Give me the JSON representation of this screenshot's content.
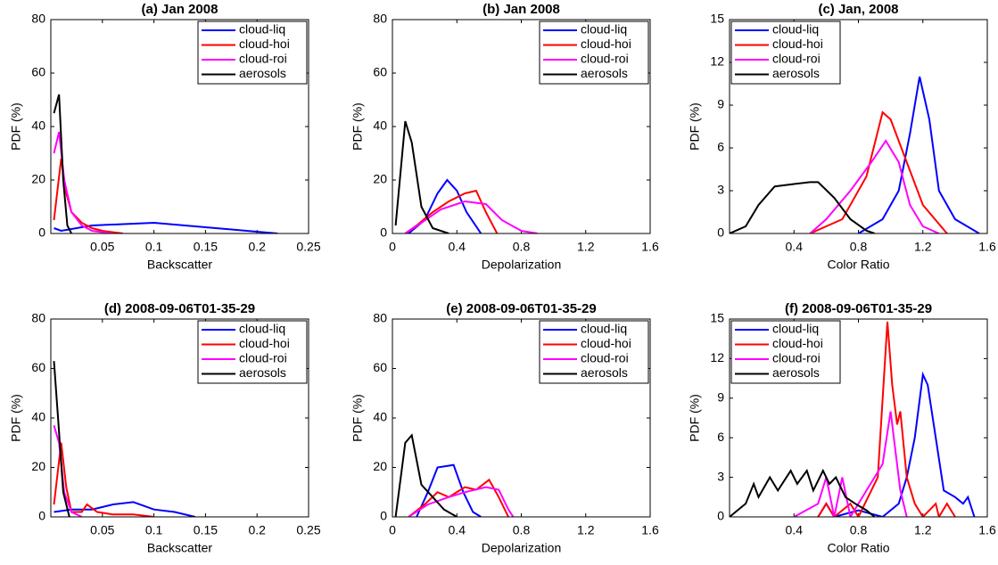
{
  "chart_data": [
    {
      "type": "line",
      "title": "(a) Jan 2008",
      "xlabel": "Backscatter",
      "ylabel": "PDF (%)",
      "xlim": [
        0,
        0.25
      ],
      "xticks": [
        0.05,
        0.1,
        0.15,
        0.2,
        0.25
      ],
      "ylim": [
        0,
        80
      ],
      "yticks": [
        0,
        20,
        40,
        60,
        80
      ],
      "legend": "upper right",
      "series": [
        {
          "name": "cloud-liq",
          "color": "#0000ff",
          "x": [
            0.003,
            0.01,
            0.04,
            0.1,
            0.13,
            0.16,
            0.19,
            0.22
          ],
          "values": [
            2,
            1,
            3,
            4,
            3,
            2,
            1,
            0
          ]
        },
        {
          "name": "cloud-hoi",
          "color": "#ff0000",
          "x": [
            0.003,
            0.01,
            0.015,
            0.02,
            0.03,
            0.04,
            0.05,
            0.07
          ],
          "values": [
            5,
            28,
            15,
            8,
            4,
            2,
            1,
            0
          ]
        },
        {
          "name": "cloud-roi",
          "color": "#ff00ff",
          "x": [
            0.003,
            0.008,
            0.013,
            0.02,
            0.03,
            0.04,
            0.06
          ],
          "values": [
            30,
            38,
            20,
            8,
            3,
            1,
            0
          ]
        },
        {
          "name": "aerosols",
          "color": "#000000",
          "x": [
            0.003,
            0.008,
            0.012,
            0.016,
            0.02
          ],
          "values": [
            45,
            52,
            20,
            3,
            0
          ]
        }
      ]
    },
    {
      "type": "line",
      "title": "(b) Jan 2008",
      "xlabel": "Depolarization",
      "ylabel": "PDF (%)",
      "xlim": [
        0,
        1.6
      ],
      "xticks": [
        0,
        0.4,
        0.8,
        1.2,
        1.6
      ],
      "ylim": [
        0,
        80
      ],
      "yticks": [
        0,
        20,
        40,
        60,
        80
      ],
      "legend": "upper right",
      "series": [
        {
          "name": "cloud-liq",
          "color": "#0000ff",
          "x": [
            0.1,
            0.2,
            0.28,
            0.34,
            0.4,
            0.46,
            0.55
          ],
          "values": [
            0,
            5,
            15,
            20,
            16,
            8,
            0
          ]
        },
        {
          "name": "cloud-hoi",
          "color": "#ff0000",
          "x": [
            0.08,
            0.15,
            0.25,
            0.35,
            0.45,
            0.52,
            0.58,
            0.65
          ],
          "values": [
            0,
            3,
            8,
            12,
            15,
            16,
            8,
            0
          ]
        },
        {
          "name": "cloud-roi",
          "color": "#ff00ff",
          "x": [
            0.08,
            0.18,
            0.3,
            0.45,
            0.58,
            0.68,
            0.8,
            0.9
          ],
          "values": [
            0,
            4,
            9,
            12,
            11,
            5,
            1,
            0
          ]
        },
        {
          "name": "aerosols",
          "color": "#000000",
          "x": [
            0.02,
            0.08,
            0.12,
            0.18,
            0.25,
            0.35
          ],
          "values": [
            3,
            42,
            34,
            10,
            2,
            0
          ]
        }
      ]
    },
    {
      "type": "line",
      "title": "(c) Jan, 2008",
      "xlabel": "Color Ratio",
      "ylabel": "PDF (%)",
      "xlim": [
        0,
        1.6
      ],
      "xticks": [
        0.4,
        0.8,
        1.2,
        1.6
      ],
      "ylim": [
        0,
        15
      ],
      "yticks": [
        0,
        3,
        6,
        9,
        12,
        15
      ],
      "legend": "upper left",
      "series": [
        {
          "name": "cloud-liq",
          "color": "#0000ff",
          "x": [
            0.8,
            0.95,
            1.05,
            1.12,
            1.18,
            1.24,
            1.3,
            1.4,
            1.55
          ],
          "values": [
            0,
            1,
            3,
            7,
            11,
            8,
            3,
            1,
            0
          ]
        },
        {
          "name": "cloud-hoi",
          "color": "#ff0000",
          "x": [
            0.5,
            0.7,
            0.85,
            0.95,
            1.0,
            1.1,
            1.2,
            1.35
          ],
          "values": [
            0,
            1,
            4,
            8.5,
            8,
            5,
            2,
            0
          ]
        },
        {
          "name": "cloud-roi",
          "color": "#ff00ff",
          "x": [
            0.5,
            0.6,
            0.75,
            0.88,
            0.97,
            1.05,
            1.12,
            1.2,
            1.3
          ],
          "values": [
            0,
            1,
            3,
            5,
            6.5,
            5,
            2,
            0.5,
            0
          ]
        },
        {
          "name": "aerosols",
          "color": "#000000",
          "x": [
            0,
            0.1,
            0.18,
            0.28,
            0.35,
            0.5,
            0.55,
            0.65,
            0.75,
            0.85,
            0.9
          ],
          "values": [
            0,
            0.5,
            2,
            3.3,
            3.4,
            3.6,
            3.6,
            2.5,
            1,
            0.2,
            0
          ]
        }
      ]
    },
    {
      "type": "line",
      "title": "(d) 2008-09-06T01-35-29",
      "xlabel": "Backscatter",
      "ylabel": "PDF (%)",
      "xlim": [
        0,
        0.25
      ],
      "xticks": [
        0.05,
        0.1,
        0.15,
        0.2,
        0.25
      ],
      "ylim": [
        0,
        80
      ],
      "yticks": [
        0,
        20,
        40,
        60,
        80
      ],
      "legend": "upper right",
      "series": [
        {
          "name": "cloud-liq",
          "color": "#0000ff",
          "x": [
            0.003,
            0.02,
            0.04,
            0.06,
            0.08,
            0.1,
            0.12,
            0.14
          ],
          "values": [
            2,
            3,
            3,
            5,
            6,
            3,
            2,
            0
          ]
        },
        {
          "name": "cloud-hoi",
          "color": "#ff0000",
          "x": [
            0.003,
            0.01,
            0.015,
            0.02,
            0.03,
            0.035,
            0.045,
            0.06,
            0.08,
            0.1
          ],
          "values": [
            5,
            30,
            12,
            2,
            2,
            5,
            2,
            1,
            1,
            0
          ]
        },
        {
          "name": "cloud-roi",
          "color": "#ff00ff",
          "x": [
            0.003,
            0.008,
            0.013,
            0.02,
            0.03
          ],
          "values": [
            37,
            30,
            10,
            2,
            0
          ]
        },
        {
          "name": "aerosols",
          "color": "#000000",
          "x": [
            0.003,
            0.007,
            0.012,
            0.018
          ],
          "values": [
            63,
            40,
            10,
            0
          ]
        }
      ]
    },
    {
      "type": "line",
      "title": "(e) 2008-09-06T01-35-29",
      "xlabel": "Depolarization",
      "ylabel": "PDF (%)",
      "xlim": [
        0,
        1.6
      ],
      "xticks": [
        0,
        0.4,
        0.8,
        1.2,
        1.6
      ],
      "ylim": [
        0,
        80
      ],
      "yticks": [
        0,
        20,
        40,
        60,
        80
      ],
      "legend": "upper right",
      "series": [
        {
          "name": "cloud-liq",
          "color": "#0000ff",
          "x": [
            0.15,
            0.22,
            0.28,
            0.38,
            0.44,
            0.5,
            0.55
          ],
          "values": [
            0,
            10,
            20,
            21,
            10,
            2,
            0
          ]
        },
        {
          "name": "cloud-hoi",
          "color": "#ff0000",
          "x": [
            0.1,
            0.2,
            0.28,
            0.35,
            0.45,
            0.52,
            0.6,
            0.66,
            0.72
          ],
          "values": [
            0,
            5,
            10,
            8,
            12,
            11,
            15,
            8,
            0
          ]
        },
        {
          "name": "cloud-roi",
          "color": "#ff00ff",
          "x": [
            0.1,
            0.22,
            0.35,
            0.45,
            0.58,
            0.66,
            0.72,
            0.75
          ],
          "values": [
            0,
            5,
            8,
            10,
            12,
            11,
            3,
            0
          ]
        },
        {
          "name": "aerosols",
          "color": "#000000",
          "x": [
            0.02,
            0.08,
            0.12,
            0.18,
            0.25,
            0.32,
            0.4
          ],
          "values": [
            0,
            30,
            33,
            13,
            8,
            3,
            0
          ]
        }
      ]
    },
    {
      "type": "line",
      "title": "(f) 2008-09-06T01-35-29",
      "xlabel": "Color Ratio",
      "ylabel": "PDF (%)",
      "xlim": [
        0,
        1.6
      ],
      "xticks": [
        0.4,
        0.8,
        1.2,
        1.6
      ],
      "ylim": [
        0,
        15
      ],
      "yticks": [
        0,
        3,
        6,
        9,
        12,
        15
      ],
      "legend": "upper left",
      "series": [
        {
          "name": "cloud-liq",
          "color": "#0000ff",
          "x": [
            0.55,
            0.6,
            0.65,
            0.8,
            0.95,
            1.05,
            1.1,
            1.15,
            1.2,
            1.23,
            1.28,
            1.33,
            1.4,
            1.45,
            1.48,
            1.52
          ],
          "values": [
            0,
            1,
            0,
            0.5,
            0,
            1,
            3,
            6,
            10.8,
            10,
            6,
            2,
            1.5,
            1,
            1.5,
            0
          ]
        },
        {
          "name": "cloud-hoi",
          "color": "#ff0000",
          "x": [
            0.55,
            0.6,
            0.65,
            0.75,
            0.8,
            0.92,
            0.98,
            1.01,
            1.04,
            1.06,
            1.1,
            1.15,
            1.2,
            1.28,
            1.3,
            1.35,
            1.4
          ],
          "values": [
            0,
            1,
            0,
            1,
            0,
            3,
            14.8,
            10,
            7,
            8,
            3,
            1,
            0,
            1,
            0,
            1,
            0
          ]
        },
        {
          "name": "cloud-roi",
          "color": "#ff00ff",
          "x": [
            0.4,
            0.55,
            0.6,
            0.65,
            0.7,
            0.75,
            0.85,
            0.9,
            0.95,
            1.0,
            1.03,
            1.06,
            1.1
          ],
          "values": [
            0,
            1,
            3,
            0,
            3,
            0,
            2,
            3,
            4,
            8,
            5,
            2,
            0
          ]
        },
        {
          "name": "aerosols",
          "color": "#000000",
          "x": [
            0,
            0.1,
            0.15,
            0.18,
            0.25,
            0.3,
            0.38,
            0.42,
            0.48,
            0.52,
            0.58,
            0.62,
            0.66,
            0.72,
            0.78,
            0.85,
            0.9
          ],
          "values": [
            0,
            1,
            2.5,
            1.5,
            3,
            2,
            3.5,
            2.5,
            3.5,
            2,
            3.5,
            2.5,
            3,
            1.5,
            1,
            0.5,
            0
          ]
        }
      ]
    }
  ]
}
